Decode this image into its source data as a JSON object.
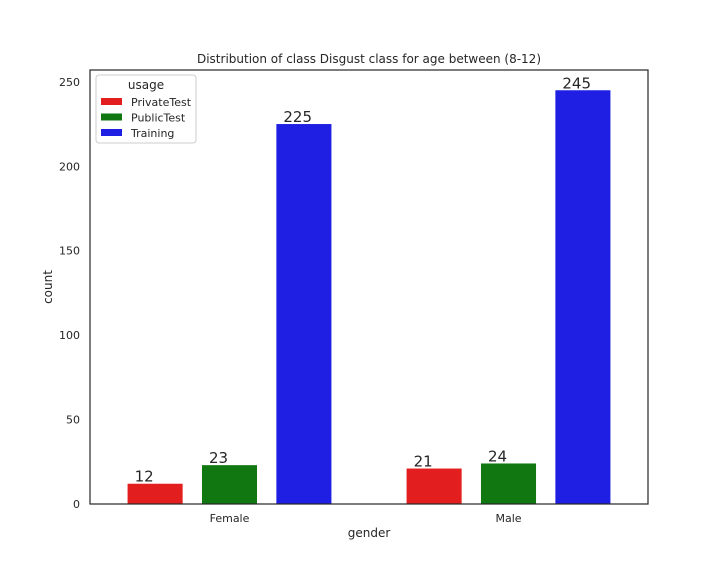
{
  "chart_data": {
    "type": "bar",
    "title": "Distribution of class Disgust class for age between (8-12)",
    "xlabel": "gender",
    "ylabel": "count",
    "categories": [
      "Female",
      "Male"
    ],
    "ylim": [
      0,
      257
    ],
    "yticks": [
      0,
      50,
      100,
      150,
      200,
      250
    ],
    "grid": false,
    "legend": {
      "title": "usage",
      "position": "top-left"
    },
    "series": [
      {
        "name": "PrivateTest",
        "color": "#e31e1e",
        "values": [
          12,
          21
        ],
        "labels": [
          "12",
          "21"
        ]
      },
      {
        "name": "PublicTest",
        "color": "#117711",
        "values": [
          23,
          24
        ],
        "labels": [
          "23",
          "24"
        ]
      },
      {
        "name": "Training",
        "color": "#1f1fe3",
        "values": [
          225,
          245
        ],
        "labels": [
          "225",
          "245"
        ]
      }
    ]
  }
}
